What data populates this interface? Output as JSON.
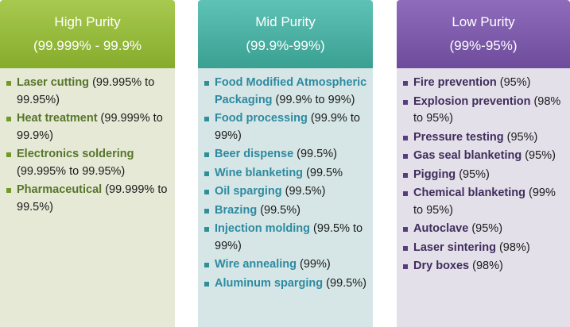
{
  "columns": [
    {
      "title": "High Purity",
      "range": "(99.999% - 99.9%",
      "items": [
        {
          "name": "Laser cutting",
          "value": " (99.995% to 99.95%)"
        },
        {
          "name": "Heat treatment",
          "value": " (99.999% to 99.9%)"
        },
        {
          "name": "Electronics soldering",
          "value": " (99.995% to 99.95%)"
        },
        {
          "name": "Pharmaceutical",
          "value": " (99.999% to 99.5%)"
        }
      ]
    },
    {
      "title": "Mid Purity",
      "range": "(99.9%-99%)",
      "items": [
        {
          "name": "Food Modified Atmospheric Packaging",
          "value": " (99.9% to 99%)"
        },
        {
          "name": "Food processing",
          "value": " (99.9% to 99%)"
        },
        {
          "name": "Beer dispense",
          "value": " (99.5%)"
        },
        {
          "name": "Wine blanketing",
          "value": " (99.5%"
        },
        {
          "name": "Oil sparging",
          "value": " (99.5%)"
        },
        {
          "name": "Brazing",
          "value": " (99.5%)"
        },
        {
          "name": "Injection molding",
          "value": " (99.5% to 99%)"
        },
        {
          "name": "Wire annealing",
          "value": " (99%)"
        },
        {
          "name": "Aluminum sparging",
          "value": " (99.5%)"
        }
      ]
    },
    {
      "title": "Low Purity",
      "range": "(99%-95%)",
      "items": [
        {
          "name": "Fire prevention",
          "value": " (95%)"
        },
        {
          "name": "Explosion prevention",
          "value": " (98% to 95%)"
        },
        {
          "name": "Pressure testing",
          "value": " (95%)"
        },
        {
          "name": "Gas seal blanketing",
          "value": " (95%)"
        },
        {
          "name": "Pigging",
          "value": " (95%)"
        },
        {
          "name": "Chemical blanketing",
          "value": " (99% to 95%)"
        },
        {
          "name": "Autoclave",
          "value": " (95%)"
        },
        {
          "name": "Laser sintering",
          "value": " (98%)"
        },
        {
          "name": "Dry boxes",
          "value": " (98%)"
        }
      ]
    }
  ]
}
